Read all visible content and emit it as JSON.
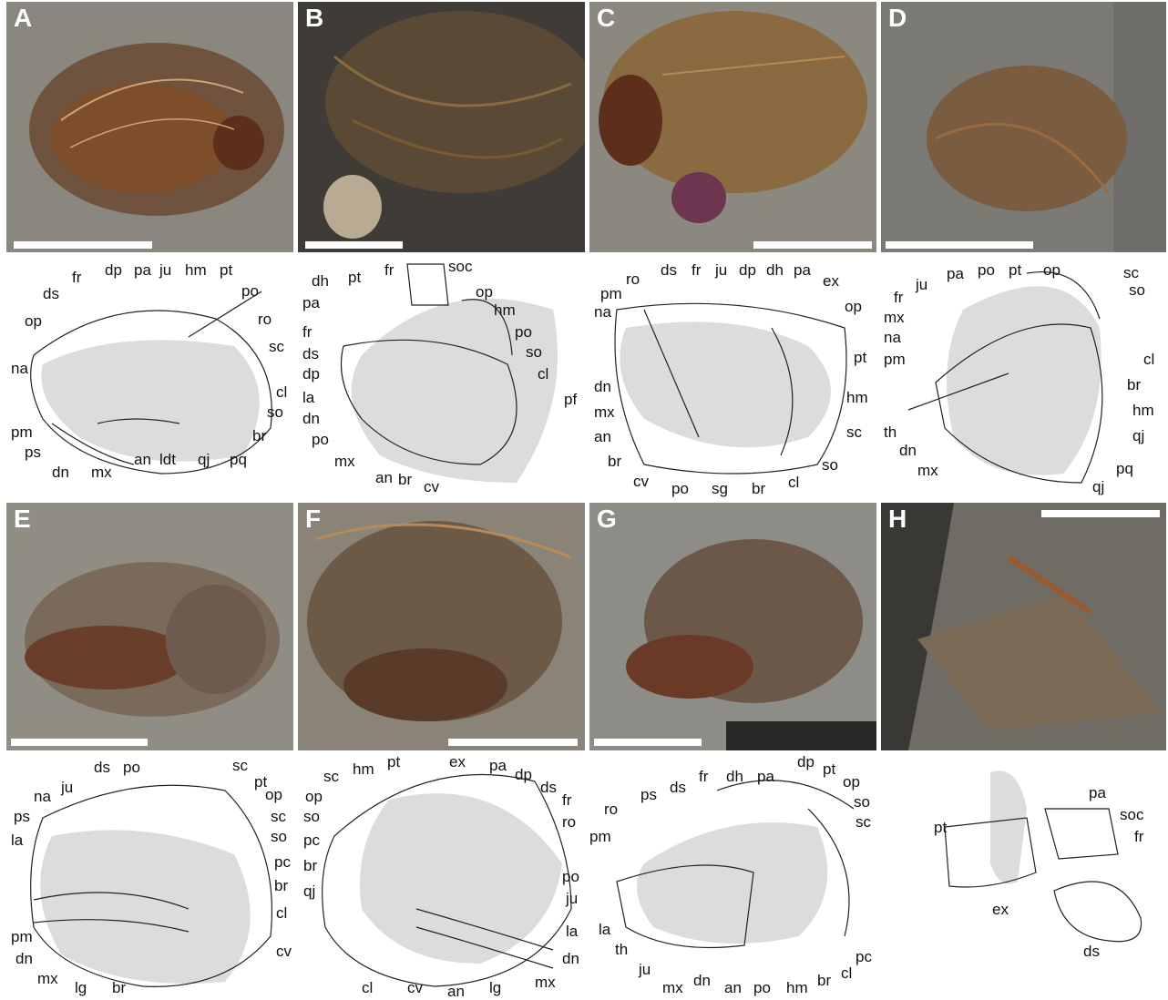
{
  "colors": {
    "rock_light": "#8e8c86",
    "rock_dark": "#3b3a36",
    "bone_brown": "#7a4a2a",
    "shade_grey": "#dcdcdc",
    "line_black": "#222222"
  },
  "panels": [
    {
      "letter": "A",
      "labels": [
        "fr",
        "dp",
        "pa",
        "ju",
        "hm",
        "pt",
        "ds",
        "po",
        "op",
        "ro",
        "sc",
        "na",
        "cl",
        "so",
        "pm",
        "br",
        "ps",
        "dn",
        "mx",
        "an",
        "ldt",
        "qj",
        "pq"
      ]
    },
    {
      "letter": "B",
      "labels": [
        "soc",
        "pt",
        "fr",
        "dh",
        "op",
        "pa",
        "hm",
        "fr",
        "po",
        "ds",
        "so",
        "dp",
        "cl",
        "pf",
        "la",
        "dn",
        "po",
        "mx",
        "an",
        "br",
        "cv"
      ]
    },
    {
      "letter": "C",
      "labels": [
        "ro",
        "ds",
        "fr",
        "ju",
        "dp",
        "dh",
        "pa",
        "ex",
        "pm",
        "op",
        "na",
        "pt",
        "dn",
        "hm",
        "mx",
        "an",
        "sc",
        "br",
        "so",
        "cv",
        "po",
        "sg",
        "br",
        "cl"
      ]
    },
    {
      "letter": "D",
      "labels": [
        "ju",
        "pa",
        "po",
        "pt",
        "op",
        "sc",
        "fr",
        "so",
        "mx",
        "na",
        "cl",
        "pm",
        "br",
        "hm",
        "th",
        "qj",
        "dn",
        "mx",
        "pq",
        "qj"
      ]
    },
    {
      "letter": "E",
      "labels": [
        "ds",
        "po",
        "sc",
        "na",
        "ju",
        "pt",
        "ps",
        "op",
        "sc",
        "la",
        "so",
        "pc",
        "br",
        "cl",
        "pm",
        "cv",
        "dn",
        "mx",
        "lg",
        "br"
      ]
    },
    {
      "letter": "F",
      "labels": [
        "hm",
        "pt",
        "ex",
        "pa",
        "dp",
        "sc",
        "ds",
        "op",
        "fr",
        "so",
        "ro",
        "pc",
        "po",
        "br",
        "ju",
        "qj",
        "la",
        "dn",
        "mx",
        "lg",
        "cv",
        "an",
        "cl"
      ]
    },
    {
      "letter": "G",
      "labels": [
        "ds",
        "fr",
        "dh",
        "pa",
        "dp",
        "pt",
        "ps",
        "op",
        "ro",
        "so",
        "sc",
        "pm",
        "la",
        "th",
        "ju",
        "mx",
        "dn",
        "an",
        "po",
        "hm",
        "br",
        "cl",
        "pc"
      ]
    },
    {
      "letter": "H",
      "labels": [
        "pt",
        "pa",
        "soc",
        "fr",
        "ex",
        "ds"
      ]
    }
  ]
}
